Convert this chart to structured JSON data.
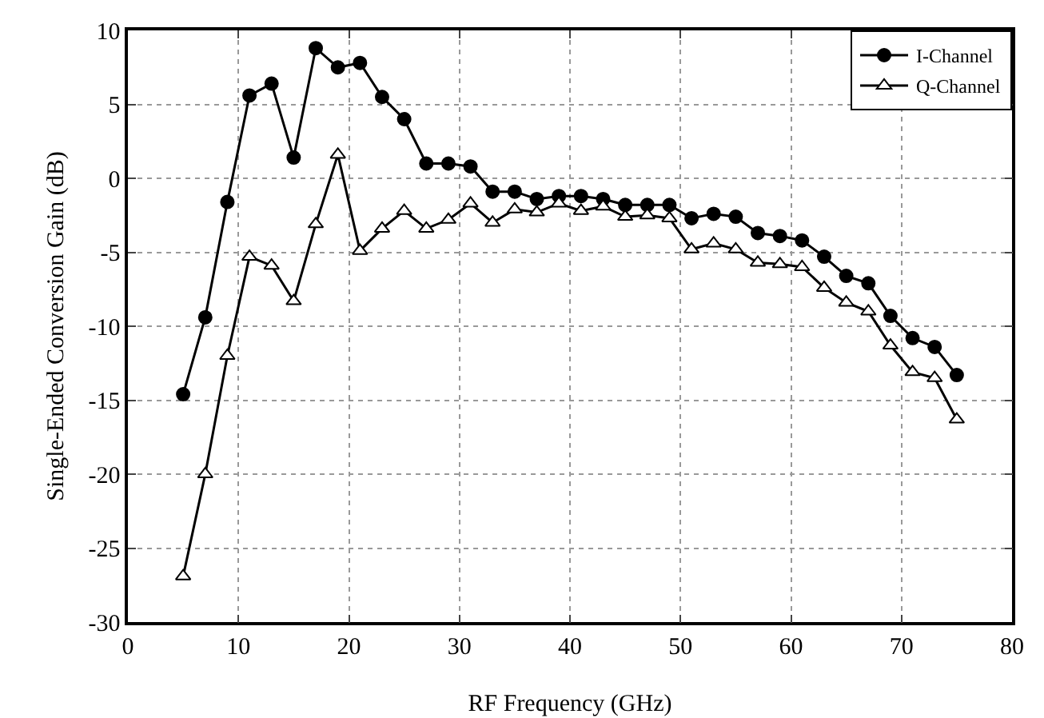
{
  "chart_data": {
    "type": "line",
    "xlabel": "RF Frequency (GHz)",
    "ylabel": "Single-Ended Conversion Gain (dB)",
    "x": [
      5,
      7,
      9,
      11,
      13,
      15,
      17,
      19,
      21,
      23,
      25,
      27,
      29,
      31,
      33,
      35,
      37,
      39,
      41,
      43,
      45,
      47,
      49,
      51,
      53,
      55,
      57,
      59,
      61,
      63,
      65,
      67,
      69,
      71,
      73,
      75
    ],
    "series": [
      {
        "name": "I-Channel",
        "color": "#000000",
        "marker": "circle",
        "values": [
          -14.6,
          -9.4,
          -1.6,
          5.6,
          6.4,
          1.4,
          8.8,
          7.5,
          7.8,
          5.5,
          4.0,
          1.0,
          1.0,
          0.8,
          -0.9,
          -0.9,
          -1.4,
          -1.2,
          -1.2,
          -1.4,
          -1.8,
          -1.8,
          -1.8,
          -2.7,
          -2.4,
          -2.6,
          -3.7,
          -3.9,
          -4.2,
          -5.3,
          -6.6,
          -7.1,
          -9.3,
          -10.8,
          -11.4,
          -13.3
        ]
      },
      {
        "name": "Q-Channel",
        "color": "#000000",
        "marker": "triangle",
        "values": [
          -26.9,
          -20.0,
          -12.0,
          -5.3,
          -5.9,
          -8.3,
          -3.1,
          1.6,
          -4.9,
          -3.4,
          -2.2,
          -3.4,
          -2.8,
          -1.7,
          -3.0,
          -2.1,
          -2.3,
          -1.7,
          -2.2,
          -1.9,
          -2.6,
          -2.5,
          -2.7,
          -4.8,
          -4.4,
          -4.8,
          -5.7,
          -5.8,
          -6.0,
          -7.4,
          -8.4,
          -9.0,
          -11.3,
          -13.1,
          -13.5,
          -16.3
        ]
      }
    ],
    "xlim": [
      0,
      80
    ],
    "xticks": [
      0,
      10,
      20,
      30,
      40,
      50,
      60,
      70,
      80
    ],
    "ylim": [
      -30,
      10
    ],
    "yticks": [
      -30,
      -25,
      -20,
      -15,
      -10,
      -5,
      0,
      5,
      10
    ],
    "grid": true,
    "legend": "top right",
    "line_style": "solid"
  }
}
